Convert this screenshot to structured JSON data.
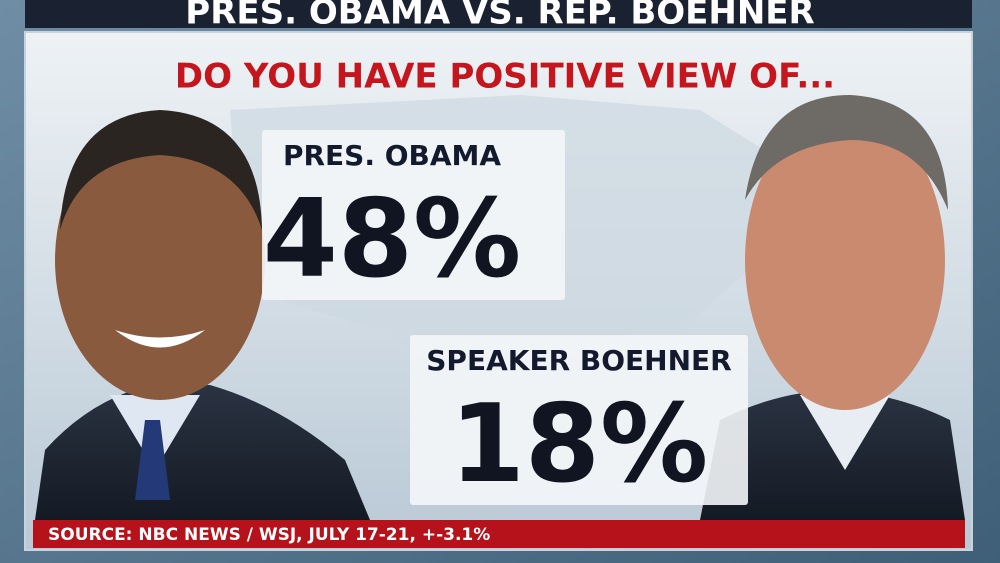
{
  "header": {
    "title": "PRES. OBAMA VS. REP. BOEHNER"
  },
  "question": "DO YOU HAVE POSITIVE VIEW OF...",
  "items": [
    {
      "label": "PRES. OBAMA",
      "value": "48%"
    },
    {
      "label": "SPEAKER BOEHNER",
      "value": "18%"
    }
  ],
  "source": "SOURCE: NBC NEWS / WSJ, JULY 17-21, +-3.1%"
}
